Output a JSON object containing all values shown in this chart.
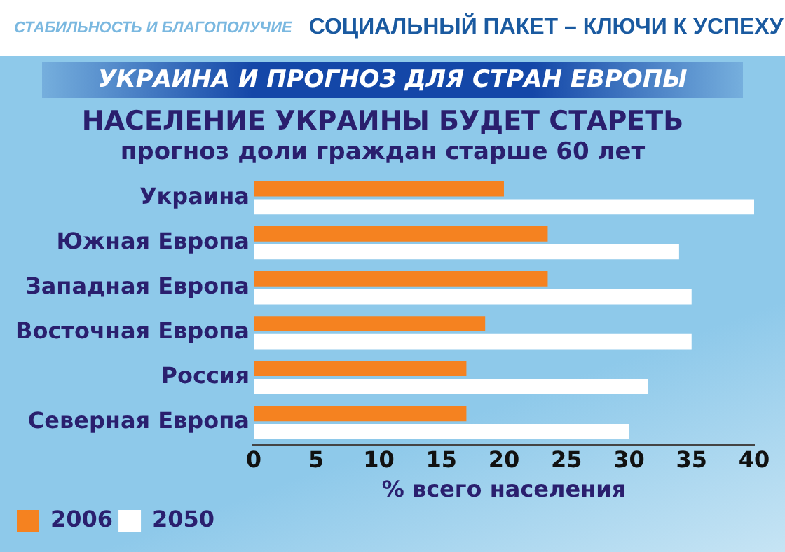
{
  "chart_data": {
    "type": "bar",
    "orientation": "horizontal",
    "title": "НАСЕЛЕНИЕ УКРАИНЫ БУДЕТ СТАРЕТЬ",
    "subtitle": "прогноз доли граждан старше 60 лет",
    "annotations": [
      "СТАБИЛЬНОСТЬ И БЛАГОПОЛУЧИЕ",
      "СОЦИАЛЬНЫЙ ПАКЕТ – КЛЮЧИ К УСПЕХУ",
      "УКРАИНА И ПРОГНОЗ ДЛЯ СТРАН ЕВРОПЫ"
    ],
    "xlabel": "% всего населения",
    "categories": [
      "Украина",
      "Южная Европа",
      "Западная Европа",
      "Восточная Европа",
      "Россия",
      "Северная Европа"
    ],
    "series": [
      {
        "name": "2006",
        "color": "#f58220",
        "values": [
          20,
          23.5,
          23.5,
          18.5,
          17,
          17
        ]
      },
      {
        "name": "2050",
        "color": "#ffffff",
        "values": [
          40,
          34,
          35,
          35,
          31.5,
          30
        ]
      }
    ],
    "xlim": [
      0,
      40
    ],
    "xticks": [
      0,
      5,
      10,
      15,
      20,
      25,
      30,
      35,
      40
    ],
    "grid": false,
    "legend": "bottom left"
  }
}
